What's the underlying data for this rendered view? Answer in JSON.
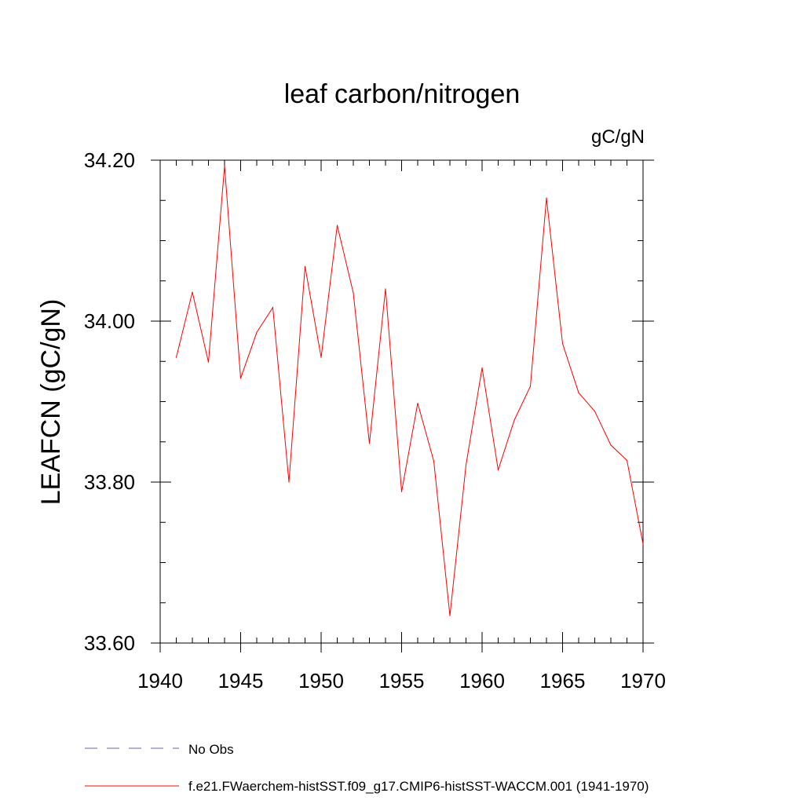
{
  "chart_data": {
    "type": "line",
    "title": "leaf carbon/nitrogen",
    "units": "gC/gN",
    "ylabel": "LEAFCN  (gC/gN)",
    "xlabel": "",
    "xlim": [
      1940,
      1970
    ],
    "ylim": [
      33.6,
      34.2
    ],
    "x_ticks": [
      "1940",
      "1945",
      "1950",
      "1955",
      "1960",
      "1965",
      "1970"
    ],
    "y_ticks": [
      "33.60",
      "33.80",
      "34.00",
      "34.20"
    ],
    "grid": false,
    "legend_position": "bottom",
    "series": [
      {
        "name": "f.e21.FWaerchem-histSST.f09_g17.CMIP6-histSST-WACCM.001 (1941-1970)",
        "color": "#ff0000",
        "style": "solid",
        "x": [
          1941,
          1942,
          1943,
          1944,
          1945,
          1946,
          1947,
          1948,
          1949,
          1950,
          1951,
          1952,
          1953,
          1954,
          1955,
          1956,
          1957,
          1958,
          1959,
          1960,
          1961,
          1962,
          1963,
          1964,
          1965,
          1966,
          1967,
          1968,
          1969,
          1970
        ],
        "y": [
          33.955,
          34.036,
          33.949,
          34.193,
          33.929,
          33.986,
          34.017,
          33.8,
          34.068,
          33.955,
          34.119,
          34.035,
          33.848,
          34.04,
          33.788,
          33.898,
          33.826,
          33.634,
          33.821,
          33.942,
          33.815,
          33.877,
          33.919,
          34.153,
          33.972,
          33.911,
          33.888,
          33.846,
          33.827,
          33.723
        ]
      },
      {
        "name": "No Obs",
        "color": "#6b5fb5",
        "style": "dashed",
        "x": [],
        "y": []
      }
    ]
  }
}
